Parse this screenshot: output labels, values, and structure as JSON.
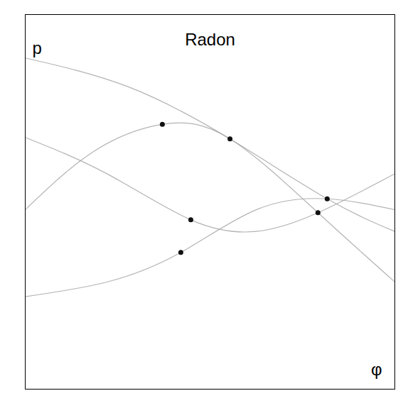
{
  "chart_data": {
    "type": "scatter",
    "title": "Radon",
    "x_label": "φ",
    "y_label": "p",
    "xlim": [
      0,
      100
    ],
    "ylim": [
      0,
      100
    ],
    "tick_labels": false,
    "series": [
      {
        "type": "line",
        "color": "#a0a0a0",
        "x": [
          0,
          18.3,
          37.1,
          55.4,
          79.2,
          100
        ],
        "values": [
          47.9,
          63.3,
          70.7,
          66.8,
          47.1,
          28.6
        ]
      },
      {
        "type": "line",
        "color": "#a0a0a0",
        "x": [
          0,
          22.1,
          42.1,
          62.5,
          81.7,
          100
        ],
        "values": [
          24.7,
          28.6,
          36.5,
          47.9,
          50.8,
          47.9
        ]
      },
      {
        "type": "line",
        "color": "#a0a0a0",
        "x": [
          0,
          27.9,
          55.4,
          81.7,
          100
        ],
        "values": [
          88.4,
          80.7,
          66.8,
          50.8,
          42.1
        ]
      },
      {
        "type": "line",
        "color": "#a0a0a0",
        "x": [
          0,
          22.1,
          44.8,
          62.5,
          79.2,
          100
        ],
        "values": [
          67.2,
          57.5,
          45.2,
          42.1,
          47.1,
          57.5
        ]
      },
      {
        "type": "scatter",
        "color": "#111111",
        "x": [
          37.1,
          55.4,
          44.8,
          42.1,
          81.7,
          79.2
        ],
        "values": [
          70.7,
          66.8,
          45.2,
          36.5,
          50.8,
          47.1
        ]
      }
    ]
  }
}
